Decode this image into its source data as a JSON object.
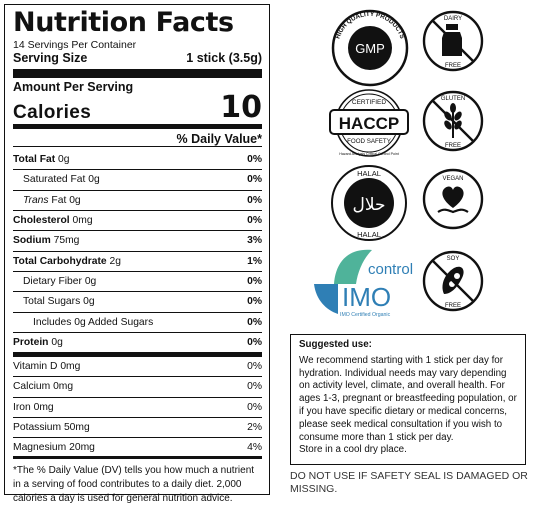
{
  "nutrition": {
    "title": "Nutrition Facts",
    "servings": "14 Servings Per Container",
    "serving_size_label": "Serving Size",
    "serving_size_value": "1 stick (3.5g)",
    "amount_per_serving": "Amount Per Serving",
    "calories_label": "Calories",
    "calories_value": "10",
    "dv_header": "% Daily Value*",
    "rows": [
      {
        "label": "Total Fat",
        "amount": "0g",
        "dv": "0%"
      },
      {
        "label": "Saturated Fat",
        "amount": "0g",
        "dv": "0%"
      },
      {
        "label": "Trans",
        "label_suffix": " Fat",
        "amount": "0g",
        "dv": "0%"
      },
      {
        "label": "Cholesterol",
        "amount": "0mg",
        "dv": "0%"
      },
      {
        "label": "Sodium",
        "amount": "75mg",
        "dv": "3%"
      },
      {
        "label": "Total Carbohydrate",
        "amount": "2g",
        "dv": "1%"
      },
      {
        "label": "Dietary Fiber",
        "amount": "0g",
        "dv": "0%"
      },
      {
        "label": "Total Sugars",
        "amount": "0g",
        "dv": "0%"
      },
      {
        "label": "Includes 0g Added Sugars",
        "amount": "",
        "dv": "0%"
      },
      {
        "label": "Protein",
        "amount": "0g",
        "dv": "0%"
      },
      {
        "label": "Vitamin D",
        "amount": "0mg",
        "dv": "0%"
      },
      {
        "label": "Calcium",
        "amount": "0mg",
        "dv": "0%"
      },
      {
        "label": "Iron",
        "amount": "0mg",
        "dv": "0%"
      },
      {
        "label": "Potassium",
        "amount": "50mg",
        "dv": "2%"
      },
      {
        "label": "Magnesium",
        "amount": "20mg",
        "dv": "4%"
      }
    ],
    "footnote": "*The % Daily Value (DV) tells you how much a nutrient in a serving of food contributes to a daily diet. 2,000 calories a day is used for general nutrition advice."
  },
  "badges": {
    "gmp": {
      "center": "GMP",
      "top_arc": "HIGH QUALITY PRODUCTS",
      "bottom_arc": "CERTIFIED",
      "icon": "gmp-seal-icon"
    },
    "haccp": {
      "top": "CERTIFIED",
      "center": "HACCP",
      "bottom": "FOOD SAFETY",
      "sub": "Hazard Analysis Critical Control Point",
      "icon": "haccp-seal-icon"
    },
    "halal": {
      "top": "HALAL",
      "center": "حلال",
      "bottom": "HALAL",
      "icon": "halal-seal-icon"
    },
    "imo": {
      "word": "control",
      "letters": "IMO",
      "sub": "IMO Certified Organic",
      "icon": "imo-logo-icon"
    },
    "dairy_free": {
      "top": "DAIRY",
      "bottom": "FREE",
      "icon": "dairy-free-icon"
    },
    "gluten_free": {
      "top": "GLUTEN",
      "bottom": "FREE",
      "icon": "gluten-free-icon"
    },
    "vegan": {
      "top": "VEGAN",
      "icon": "vegan-heart-icon"
    },
    "soy_free": {
      "top": "SOY",
      "bottom": "FREE",
      "icon": "soy-free-icon"
    }
  },
  "suggested_use": {
    "title": "Suggested use:",
    "body": "We recommend starting with 1 stick per day for hydration. Individual needs may vary depending on activity level, climate, and overall health. For ages 1-3, pregnant or breastfeeding population, or if you have specific dietary or medical concerns, please seek medical consultation if you wish to consume more than 1 stick per day.",
    "storage": "Store in a cool dry place."
  },
  "warning": "DO NOT USE IF SAFETY SEAL IS DAMAGED OR MISSING.",
  "colors": {
    "ink": "#111111",
    "imo_green": "#4fb39a",
    "imo_blue": "#2f7fb5"
  }
}
